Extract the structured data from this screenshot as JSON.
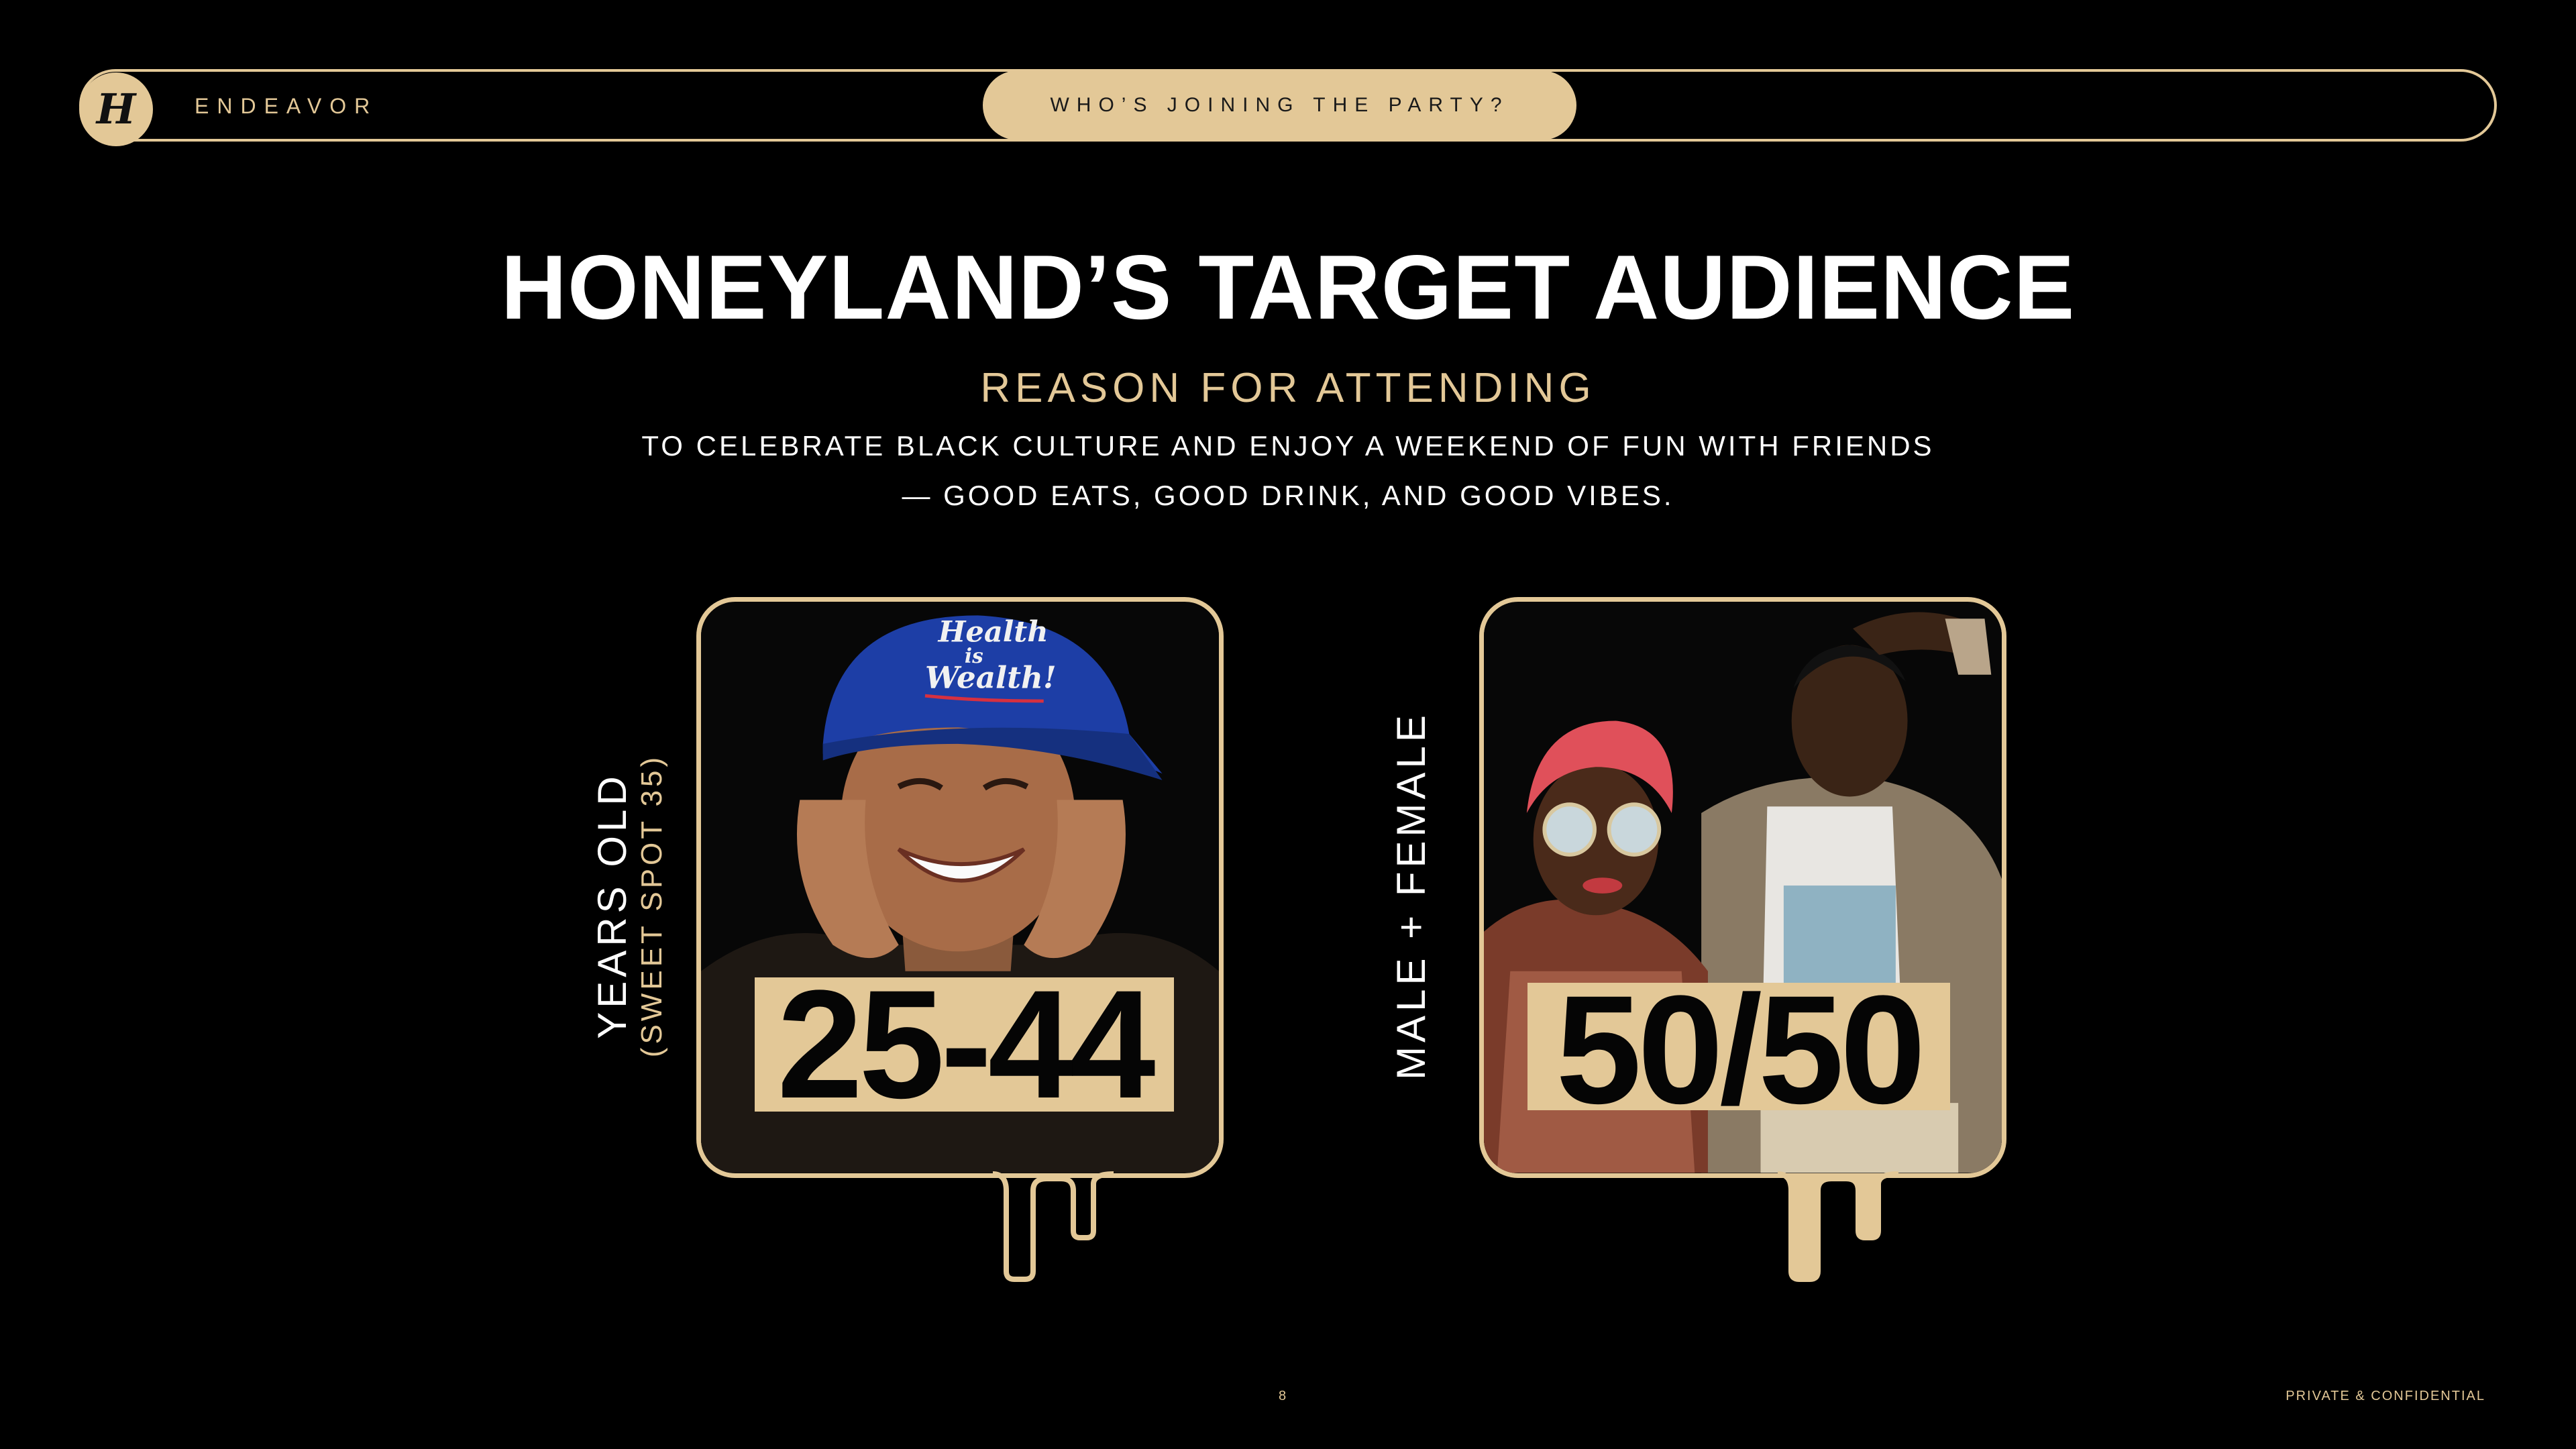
{
  "header": {
    "logo_letter": "H",
    "brand": "ENDEAVOR",
    "section_tab": "WHO’S JOINING THE PARTY?"
  },
  "title": "HONEYLAND’S TARGET AUDIENCE",
  "subtitle": "REASON FOR ATTENDING",
  "description": {
    "line1": "TO CELEBRATE BLACK CULTURE AND ENJOY A WEEKEND OF FUN WITH FRIENDS",
    "line2": "— GOOD EATS, GOOD DRINK, AND GOOD VIBES."
  },
  "stats": {
    "age": {
      "value": "25-44",
      "label": "YEARS OLD",
      "sublabel": "(SWEET SPOT 35)",
      "cap_text_1": "Health",
      "cap_text_2": "is",
      "cap_text_3": "Wealth!"
    },
    "gender": {
      "value": "50/50",
      "label": "MALE + FEMALE"
    }
  },
  "footer": {
    "page_number": "8",
    "confidential": "PRIVATE & CONFIDENTIAL"
  },
  "colors": {
    "accent": "#e3c897",
    "background": "#000000",
    "text": "#ffffff"
  }
}
